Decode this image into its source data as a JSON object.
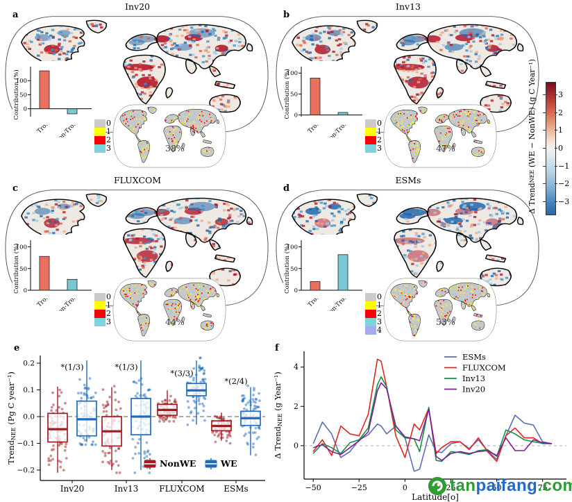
{
  "panels": {
    "a": {
      "letter": "a",
      "title": "Inv20",
      "agreement_inset": {
        "classes": [
          "0",
          "1",
          "2",
          "3"
        ],
        "colors": [
          "#cbcbcb",
          "#ffff00",
          "#fb0007",
          "#7fd4dc"
        ],
        "percent": "38%"
      }
    },
    "b": {
      "letter": "b",
      "title": "Inv13",
      "agreement_inset": {
        "classes": [
          "0",
          "1",
          "2",
          "3"
        ],
        "colors": [
          "#cbcbcb",
          "#ffff00",
          "#fb0007",
          "#7fd4dc"
        ],
        "percent": "47%"
      }
    },
    "c": {
      "letter": "c",
      "title": "FLUXCOM",
      "agreement_inset": {
        "classes": [
          "0",
          "1",
          "2",
          "3"
        ],
        "colors": [
          "#cbcbcb",
          "#ffff00",
          "#fb0007",
          "#7fd4dc"
        ],
        "percent": "44%"
      }
    },
    "d": {
      "letter": "d",
      "title": "ESMs",
      "agreement_inset": {
        "classes": [
          "0",
          "1",
          "2",
          "3",
          "4"
        ],
        "colors": [
          "#cbcbcb",
          "#ffff00",
          "#fb0007",
          "#7fd4dc",
          "#a3abf2"
        ],
        "percent": "53%"
      }
    },
    "e": {
      "letter": "e"
    },
    "f": {
      "letter": "f"
    }
  },
  "colorbar": {
    "label_prefix": "Δ Trend",
    "label_sub": "NEE",
    "label_suffix": " (WE − NonWE) (g C Year⁻¹)",
    "ticks": [
      3,
      2,
      1,
      0,
      -1,
      -2,
      -3
    ],
    "range": [
      -3.7,
      3.7
    ],
    "top_color": "#7a0c20",
    "bottom_color": "#2a66a5"
  },
  "map_palette": {
    "land": "#efe9e3",
    "mini_land": "#c8c8c8",
    "coast": "#000000",
    "reds": [
      "#b2182b",
      "#d6604d",
      "#f4a582"
    ],
    "blues": [
      "#2166ac",
      "#4393c3",
      "#9ecae1"
    ]
  },
  "watermark": {
    "part_green": "tan",
    "part_blue": "paifang",
    "part_green2": ".com",
    "logo_color": "#2f9b33"
  },
  "chart_data": [
    {
      "type": "bar",
      "panel": "a",
      "ylabel": "Contribution (%)",
      "yticks": [
        0,
        50,
        100
      ],
      "categories": [
        "Tro.",
        "Non-Tro."
      ],
      "values": [
        135,
        -18
      ],
      "colors": [
        "#e9705e",
        "#76c9d4"
      ]
    },
    {
      "type": "bar",
      "panel": "b",
      "ylabel": "Contribution (%)",
      "yticks": [
        0,
        50,
        100
      ],
      "categories": [
        "Tro.",
        "Non-Tro."
      ],
      "values": [
        88,
        6
      ],
      "colors": [
        "#e9705e",
        "#76c9d4"
      ]
    },
    {
      "type": "bar",
      "panel": "c",
      "ylabel": "Contribution (%)",
      "yticks": [
        0,
        50,
        100
      ],
      "categories": [
        "Tro.",
        "Non-Tro."
      ],
      "values": [
        78,
        25
      ],
      "colors": [
        "#e9705e",
        "#76c9d4"
      ]
    },
    {
      "type": "bar",
      "panel": "d",
      "ylabel": "Contribution (%)",
      "yticks": [
        0,
        50,
        100
      ],
      "categories": [
        "Tro.",
        "Non-Tro."
      ],
      "values": [
        20,
        82
      ],
      "colors": [
        "#e9705e",
        "#76c9d4"
      ]
    },
    {
      "type": "box",
      "panel": "e",
      "ylabel_prefix": "Trend",
      "ylabel_sub": "NEE",
      "ylabel_suffix": " (Pg C year⁻¹)",
      "yticks": [
        0.2,
        0.1,
        0.0,
        -0.1,
        -0.2
      ],
      "ylim": [
        -0.23,
        0.24
      ],
      "categories": [
        "Inv20",
        "Inv13",
        "FLUXCOM",
        "ESMs"
      ],
      "annotations": [
        "*(1/3)",
        "*(1/3)",
        "*(3/3)",
        "*(2/4)"
      ],
      "annotation_y": [
        0.175,
        0.175,
        0.152,
        0.122
      ],
      "zero_line": true,
      "legend": [
        "NonWE",
        "WE"
      ],
      "series": [
        {
          "name": "NonWE",
          "color": "#a11b22",
          "boxes": [
            {
              "low": -0.21,
              "q1": -0.095,
              "median": -0.047,
              "q3": 0.012,
              "high": 0.112
            },
            {
              "low": -0.2,
              "q1": -0.11,
              "median": -0.055,
              "q3": 0.0,
              "high": 0.11
            },
            {
              "low": -0.008,
              "q1": 0.005,
              "median": 0.025,
              "q3": 0.046,
              "high": 0.098
            },
            {
              "low": -0.09,
              "q1": -0.053,
              "median": -0.035,
              "q3": -0.016,
              "high": 0.015
            }
          ]
        },
        {
          "name": "WE",
          "color": "#1f6cbf",
          "boxes": [
            {
              "low": -0.095,
              "q1": -0.072,
              "median": -0.01,
              "q3": 0.058,
              "high": 0.21
            },
            {
              "low": -0.2,
              "q1": -0.068,
              "median": 0.0,
              "q3": 0.068,
              "high": 0.21
            },
            {
              "low": -0.03,
              "q1": 0.078,
              "median": 0.098,
              "q3": 0.124,
              "high": 0.21
            },
            {
              "low": -0.145,
              "q1": -0.033,
              "median": -0.006,
              "q3": 0.02,
              "high": 0.11
            }
          ]
        }
      ]
    },
    {
      "type": "line",
      "panel": "f",
      "xlabel": "Latitude[o]",
      "ylabel_prefix": "Δ Trend",
      "ylabel_sub": "NEE",
      "ylabel_suffix": " (g Year⁻¹)",
      "xticks": [
        -50,
        -25,
        0,
        25,
        50,
        75
      ],
      "yticks": [
        0,
        2,
        4
      ],
      "xlim": [
        -55,
        88
      ],
      "ylim": [
        -1.7,
        4.8
      ],
      "zero_line": true,
      "legend_position": "top-right",
      "x": [
        -50,
        -45,
        -40,
        -35,
        -30,
        -25,
        -20,
        -15,
        -13,
        -10,
        -5,
        0,
        5,
        8,
        13,
        17,
        20,
        25,
        30,
        35,
        40,
        45,
        50,
        55,
        60,
        65,
        70,
        75,
        80
      ],
      "series": [
        {
          "name": "ESMs",
          "color": "#5d6db2",
          "values": [
            0.1,
            1.2,
            0.6,
            -0.6,
            -0.3,
            0.3,
            0.55,
            1.1,
            1.0,
            0.6,
            1.0,
            0.4,
            -1.3,
            -1.2,
            0.55,
            -0.3,
            -0.35,
            0.1,
            0.2,
            -0.15,
            0.3,
            -0.25,
            -0.7,
            0.5,
            1.55,
            1.15,
            1.05,
            0.2,
            0.1
          ]
        },
        {
          "name": "FLUXCOM",
          "color": "#e8231f",
          "values": [
            -0.3,
            0.3,
            -0.5,
            1.0,
            0.6,
            0.5,
            1.6,
            4.4,
            4.3,
            3.0,
            0.5,
            -0.6,
            1.1,
            0.8,
            1.9,
            -0.4,
            -0.1,
            0.2,
            0.2,
            -0.2,
            0.4,
            -0.3,
            -0.8,
            0.5,
            0.9,
            0.4,
            0.4,
            0.1,
            0.1
          ]
        },
        {
          "name": "Inv13",
          "color": "#159048",
          "values": [
            -0.4,
            0.1,
            -0.1,
            -0.4,
            0.15,
            0.3,
            0.9,
            3.1,
            3.5,
            3.0,
            0.8,
            0.4,
            0.35,
            -0.3,
            1.95,
            -0.75,
            -0.8,
            -0.3,
            -0.35,
            -0.45,
            -0.25,
            -0.2,
            -0.55,
            0.8,
            0.6,
            0.3,
            0.2,
            0.12,
            0.1
          ]
        },
        {
          "name": "Inv20",
          "color": "#7c2290",
          "values": [
            -0.1,
            0.05,
            -0.3,
            -0.45,
            -0.1,
            0.25,
            0.7,
            2.8,
            3.2,
            2.9,
            1.0,
            0.45,
            0.35,
            0.25,
            1.85,
            -0.55,
            -0.75,
            -0.4,
            -0.3,
            -0.4,
            -0.3,
            -0.25,
            -0.5,
            0.4,
            -0.25,
            -0.25,
            0.3,
            0.15,
            0.1
          ]
        }
      ]
    }
  ]
}
